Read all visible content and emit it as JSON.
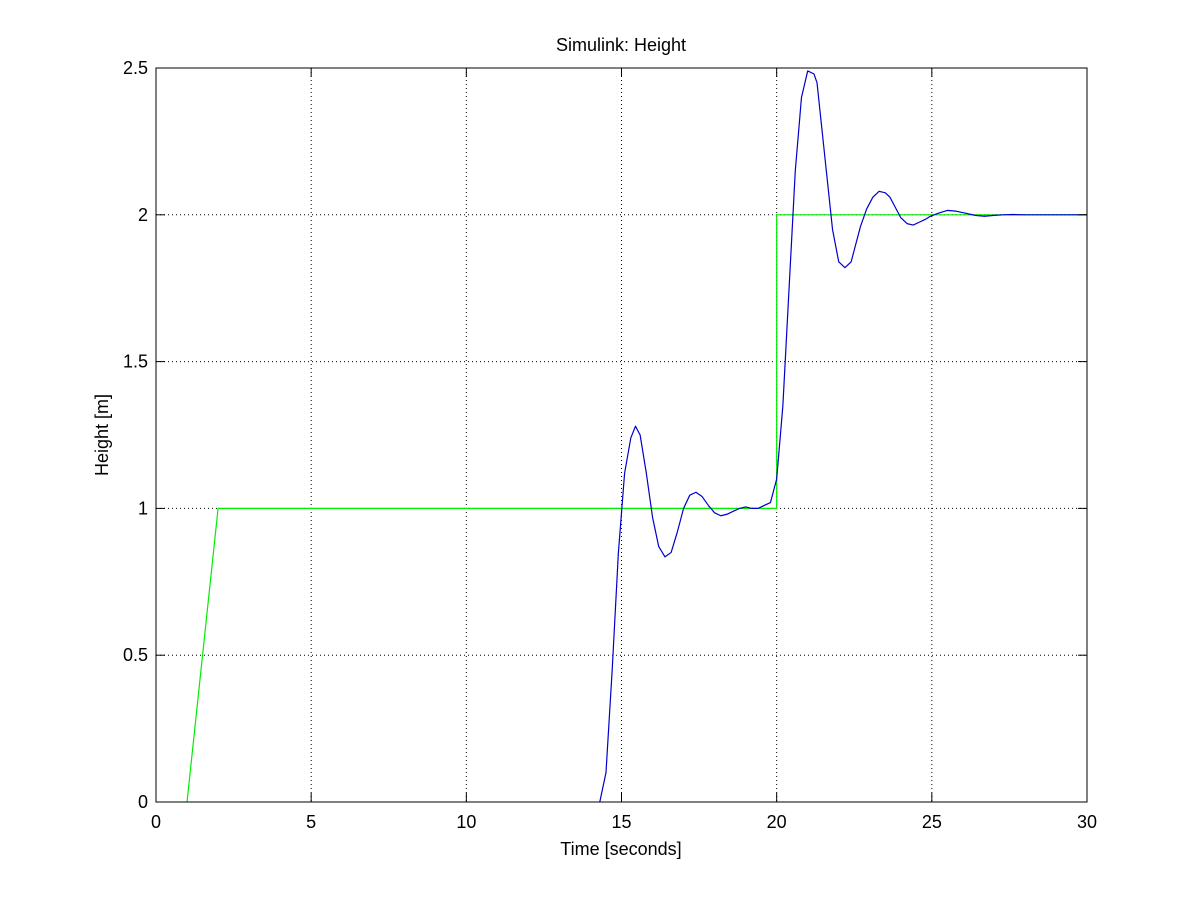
{
  "chart_data": {
    "type": "line",
    "title": "Simulink: Height",
    "xlabel": "Time [seconds]",
    "ylabel": "Height [m]",
    "xlim": [
      0,
      30
    ],
    "ylim": [
      0,
      2.5
    ],
    "xticks": [
      0,
      5,
      10,
      15,
      20,
      25,
      30
    ],
    "xtick_labels": [
      "0",
      "5",
      "10",
      "15",
      "20",
      "25",
      "30"
    ],
    "yticks": [
      0,
      0.5,
      1,
      1.5,
      2,
      2.5
    ],
    "ytick_labels": [
      "0",
      "0.5",
      "1",
      "1.5",
      "2",
      "2.5"
    ],
    "grid": true,
    "grid_style": "dotted",
    "series": [
      {
        "color": "#00ee00",
        "x": [
          1.0,
          2.0,
          20.0,
          20.0,
          30.0
        ],
        "y": [
          0.0,
          1.0,
          1.0,
          2.0,
          2.0
        ]
      },
      {
        "color": "#0000cc",
        "x": [
          14.3,
          14.5,
          14.7,
          14.9,
          15.1,
          15.3,
          15.45,
          15.6,
          15.8,
          16.0,
          16.2,
          16.4,
          16.6,
          16.8,
          17.0,
          17.2,
          17.4,
          17.6,
          17.8,
          18.0,
          18.2,
          18.4,
          18.6,
          18.8,
          19.0,
          19.2,
          19.4,
          19.6,
          19.8,
          20.0,
          20.2,
          20.4,
          20.6,
          20.8,
          21.0,
          21.2,
          21.3,
          21.4,
          21.6,
          21.8,
          22.0,
          22.2,
          22.4,
          22.5,
          22.7,
          22.9,
          23.1,
          23.3,
          23.5,
          23.65,
          23.8,
          24.0,
          24.2,
          24.4,
          24.6,
          24.8,
          24.95,
          25.2,
          25.5,
          25.8,
          26.1,
          26.4,
          26.7,
          27.0,
          27.3,
          27.6,
          28.0,
          28.5,
          29.0,
          29.5,
          30.0
        ],
        "y": [
          0.0,
          0.1,
          0.45,
          0.85,
          1.12,
          1.24,
          1.28,
          1.25,
          1.12,
          0.97,
          0.87,
          0.835,
          0.85,
          0.92,
          1.0,
          1.045,
          1.055,
          1.04,
          1.01,
          0.985,
          0.975,
          0.98,
          0.99,
          1.0,
          1.005,
          1.0,
          1.0,
          1.01,
          1.02,
          1.1,
          1.35,
          1.75,
          2.15,
          2.4,
          2.49,
          2.48,
          2.45,
          2.35,
          2.15,
          1.95,
          1.84,
          1.82,
          1.84,
          1.88,
          1.96,
          2.02,
          2.06,
          2.08,
          2.075,
          2.06,
          2.03,
          1.99,
          1.97,
          1.965,
          1.975,
          1.985,
          1.995,
          2.005,
          2.015,
          2.012,
          2.005,
          1.998,
          1.995,
          1.998,
          2.0,
          2.001,
          2.0,
          2.0,
          2.0,
          2.0,
          2.0
        ]
      }
    ]
  }
}
